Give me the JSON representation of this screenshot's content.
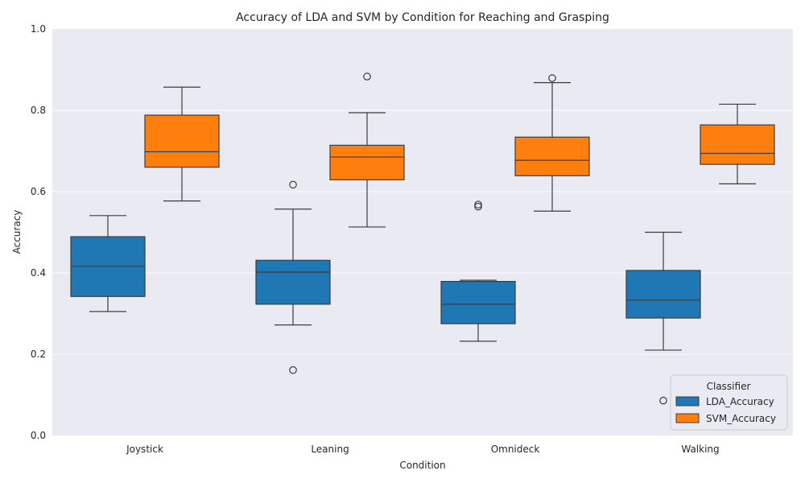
{
  "chart_data": {
    "type": "box",
    "title": "Accuracy of LDA and SVM by Condition for Reaching and Grasping",
    "xlabel": "Condition",
    "ylabel": "Accuracy",
    "ylim": [
      0,
      1.0
    ],
    "yticks": [
      "0.0",
      "0.2",
      "0.4",
      "0.6",
      "0.8",
      "1.0"
    ],
    "grid": true,
    "legend_position": "lower-right",
    "legend_title": "Classifier",
    "categories": [
      "Joystick",
      "Leaning",
      "Omnideck",
      "Walking"
    ],
    "series": [
      {
        "name": "LDA_Accuracy",
        "color": "#1f77b4",
        "boxes": [
          {
            "whisker_low": 0.305,
            "q1": 0.342,
            "median": 0.416,
            "q3": 0.489,
            "whisker_high": 0.541,
            "outliers": []
          },
          {
            "whisker_low": 0.272,
            "q1": 0.323,
            "median": 0.402,
            "q3": 0.431,
            "whisker_high": 0.557,
            "outliers": [
              0.617,
              0.161
            ]
          },
          {
            "whisker_low": 0.232,
            "q1": 0.275,
            "median": 0.323,
            "q3": 0.379,
            "whisker_high": 0.382,
            "outliers": [
              0.568,
              0.563
            ]
          },
          {
            "whisker_low": 0.21,
            "q1": 0.289,
            "median": 0.333,
            "q3": 0.406,
            "whisker_high": 0.5,
            "outliers": [
              0.086
            ]
          }
        ]
      },
      {
        "name": "SVM_Accuracy",
        "color": "#ff7f0e",
        "boxes": [
          {
            "whisker_low": 0.577,
            "q1": 0.66,
            "median": 0.698,
            "q3": 0.788,
            "whisker_high": 0.857,
            "outliers": []
          },
          {
            "whisker_low": 0.513,
            "q1": 0.629,
            "median": 0.685,
            "q3": 0.714,
            "whisker_high": 0.794,
            "outliers": [
              0.883
            ]
          },
          {
            "whisker_low": 0.552,
            "q1": 0.639,
            "median": 0.677,
            "q3": 0.734,
            "whisker_high": 0.868,
            "outliers": [
              0.879
            ]
          },
          {
            "whisker_low": 0.619,
            "q1": 0.667,
            "median": 0.694,
            "q3": 0.764,
            "whisker_high": 0.815,
            "outliers": []
          }
        ]
      }
    ]
  }
}
